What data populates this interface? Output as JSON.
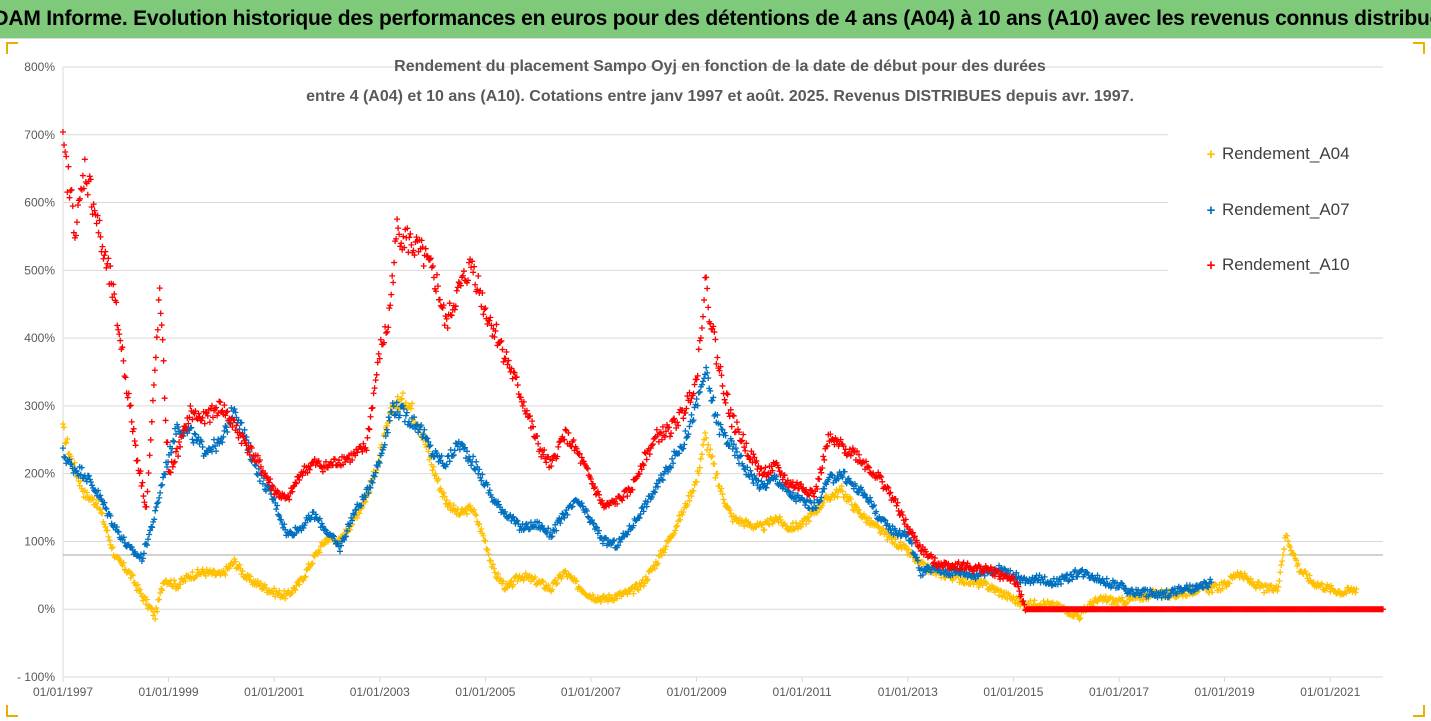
{
  "banner": {
    "title": "ADAM Informe. Evolution historique des performances en euros pour des détentions de 4 ans (A04) à 10 ans (A10) avec les revenus connus distribués"
  },
  "colors": {
    "banner_bg": "#7fc97a",
    "A04": "#ffc000",
    "A07": "#0070c0",
    "A10": "#ff0000",
    "gridline": "#d9d9d9",
    "reference_line": "#a6a6a6"
  },
  "chart_data": {
    "type": "scatter",
    "title_line1": "Rendement du placement Sampo Oyj en fonction de la date de début pour des durées",
    "title_line2": "entre 4 (A04) et 10 ans (A10). Cotations entre janv 1997 et août. 2025. Revenus DISTRIBUES depuis avr. 1997.",
    "xlabel": "",
    "ylabel": "",
    "xlim": [
      "1997-01-01",
      "2022-01-01"
    ],
    "ylim": [
      -100,
      800
    ],
    "y_unit": "%",
    "grid": "horizontal",
    "marker": "+",
    "legend_position": "right",
    "reference_line_y": 80,
    "x_ticks": [
      "01/01/1997",
      "01/01/1999",
      "01/01/2001",
      "01/01/2003",
      "01/01/2005",
      "01/01/2007",
      "01/01/2009",
      "01/01/2011",
      "01/01/2013",
      "01/01/2015",
      "01/01/2017",
      "01/01/2019",
      "01/01/2021"
    ],
    "y_ticks": [
      "800%",
      "700%",
      "600%",
      "500%",
      "400%",
      "300%",
      "200%",
      "100%",
      "0%",
      "- 100%"
    ],
    "series": [
      {
        "name": "Rendement_A04",
        "color": "#ffc000",
        "points": [
          [
            "1997-01-01",
            265
          ],
          [
            "1997-03-01",
            220
          ],
          [
            "1997-06-01",
            170
          ],
          [
            "1997-09-01",
            155
          ],
          [
            "1998-01-01",
            75
          ],
          [
            "1998-04-01",
            55
          ],
          [
            "1998-07-01",
            20
          ],
          [
            "1998-10-01",
            -10
          ],
          [
            "1998-12-01",
            45
          ],
          [
            "1999-03-01",
            35
          ],
          [
            "1999-06-01",
            50
          ],
          [
            "1999-09-01",
            55
          ],
          [
            "2000-01-01",
            50
          ],
          [
            "2000-04-01",
            70
          ],
          [
            "2000-07-01",
            45
          ],
          [
            "2000-10-01",
            35
          ],
          [
            "2001-01-01",
            25
          ],
          [
            "2001-04-01",
            20
          ],
          [
            "2001-07-01",
            40
          ],
          [
            "2001-10-01",
            75
          ],
          [
            "2002-01-01",
            105
          ],
          [
            "2002-04-01",
            100
          ],
          [
            "2002-07-01",
            130
          ],
          [
            "2002-10-01",
            165
          ],
          [
            "2003-01-01",
            225
          ],
          [
            "2003-04-01",
            300
          ],
          [
            "2003-07-01",
            310
          ],
          [
            "2003-10-01",
            275
          ],
          [
            "2004-01-01",
            210
          ],
          [
            "2004-04-01",
            160
          ],
          [
            "2004-07-01",
            140
          ],
          [
            "2004-10-01",
            150
          ],
          [
            "2005-01-01",
            100
          ],
          [
            "2005-03-01",
            55
          ],
          [
            "2005-06-01",
            30
          ],
          [
            "2005-09-01",
            50
          ],
          [
            "2006-01-01",
            40
          ],
          [
            "2006-04-01",
            30
          ],
          [
            "2006-07-01",
            55
          ],
          [
            "2006-10-01",
            35
          ],
          [
            "2007-01-01",
            20
          ],
          [
            "2007-04-01",
            15
          ],
          [
            "2007-07-01",
            20
          ],
          [
            "2007-10-01",
            25
          ],
          [
            "2008-01-01",
            40
          ],
          [
            "2008-04-01",
            70
          ],
          [
            "2008-07-01",
            105
          ],
          [
            "2008-10-01",
            145
          ],
          [
            "2009-01-01",
            190
          ],
          [
            "2009-03-01",
            255
          ],
          [
            "2009-06-01",
            185
          ],
          [
            "2009-09-01",
            135
          ],
          [
            "2010-01-01",
            125
          ],
          [
            "2010-04-01",
            120
          ],
          [
            "2010-07-01",
            135
          ],
          [
            "2010-10-01",
            120
          ],
          [
            "2011-01-01",
            125
          ],
          [
            "2011-04-01",
            145
          ],
          [
            "2011-07-01",
            165
          ],
          [
            "2011-10-01",
            175
          ],
          [
            "2012-01-01",
            150
          ],
          [
            "2012-04-01",
            130
          ],
          [
            "2012-07-01",
            115
          ],
          [
            "2012-10-01",
            100
          ],
          [
            "2013-01-01",
            85
          ],
          [
            "2013-04-01",
            65
          ],
          [
            "2013-07-01",
            55
          ],
          [
            "2013-10-01",
            50
          ],
          [
            "2014-01-01",
            45
          ],
          [
            "2014-04-01",
            40
          ],
          [
            "2014-07-01",
            35
          ],
          [
            "2014-10-01",
            25
          ],
          [
            "2015-01-01",
            15
          ],
          [
            "2015-04-01",
            5
          ],
          [
            "2015-07-01",
            10
          ],
          [
            "2015-10-01",
            5
          ],
          [
            "2016-01-01",
            0
          ],
          [
            "2016-04-01",
            -10
          ],
          [
            "2016-07-01",
            10
          ],
          [
            "2016-10-01",
            15
          ],
          [
            "2017-01-01",
            10
          ],
          [
            "2017-04-01",
            15
          ],
          [
            "2017-07-01",
            20
          ],
          [
            "2017-10-01",
            25
          ],
          [
            "2018-01-01",
            20
          ],
          [
            "2018-04-01",
            25
          ],
          [
            "2018-07-01",
            30
          ],
          [
            "2018-10-01",
            30
          ],
          [
            "2019-01-01",
            35
          ],
          [
            "2019-04-01",
            55
          ],
          [
            "2019-07-01",
            40
          ],
          [
            "2019-10-01",
            30
          ],
          [
            "2020-01-01",
            30
          ],
          [
            "2020-03-01",
            110
          ],
          [
            "2020-06-01",
            60
          ],
          [
            "2020-09-01",
            40
          ],
          [
            "2021-01-01",
            30
          ],
          [
            "2021-04-01",
            25
          ],
          [
            "2021-07-01",
            30
          ]
        ]
      },
      {
        "name": "Rendement_A07",
        "color": "#0070c0",
        "points": [
          [
            "1997-01-01",
            230
          ],
          [
            "1997-03-01",
            210
          ],
          [
            "1997-06-01",
            200
          ],
          [
            "1997-09-01",
            170
          ],
          [
            "1998-01-01",
            120
          ],
          [
            "1998-04-01",
            90
          ],
          [
            "1998-07-01",
            75
          ],
          [
            "1998-10-01",
            140
          ],
          [
            "1998-12-01",
            200
          ],
          [
            "1999-03-01",
            270
          ],
          [
            "1999-06-01",
            260
          ],
          [
            "1999-09-01",
            235
          ],
          [
            "2000-01-01",
            245
          ],
          [
            "2000-04-01",
            300
          ],
          [
            "2000-07-01",
            240
          ],
          [
            "2000-10-01",
            195
          ],
          [
            "2001-01-01",
            160
          ],
          [
            "2001-04-01",
            110
          ],
          [
            "2001-07-01",
            120
          ],
          [
            "2001-10-01",
            140
          ],
          [
            "2002-01-01",
            115
          ],
          [
            "2002-04-01",
            90
          ],
          [
            "2002-07-01",
            140
          ],
          [
            "2002-10-01",
            170
          ],
          [
            "2003-01-01",
            220
          ],
          [
            "2003-04-01",
            300
          ],
          [
            "2003-07-01",
            285
          ],
          [
            "2003-10-01",
            270
          ],
          [
            "2004-01-01",
            230
          ],
          [
            "2004-04-01",
            215
          ],
          [
            "2004-07-01",
            245
          ],
          [
            "2004-10-01",
            220
          ],
          [
            "2005-01-01",
            185
          ],
          [
            "2005-03-01",
            160
          ],
          [
            "2005-06-01",
            140
          ],
          [
            "2005-09-01",
            120
          ],
          [
            "2006-01-01",
            125
          ],
          [
            "2006-04-01",
            110
          ],
          [
            "2006-07-01",
            140
          ],
          [
            "2006-10-01",
            160
          ],
          [
            "2007-01-01",
            130
          ],
          [
            "2007-04-01",
            100
          ],
          [
            "2007-07-01",
            95
          ],
          [
            "2007-10-01",
            120
          ],
          [
            "2008-01-01",
            150
          ],
          [
            "2008-04-01",
            180
          ],
          [
            "2008-07-01",
            215
          ],
          [
            "2008-10-01",
            245
          ],
          [
            "2009-01-01",
            300
          ],
          [
            "2009-03-01",
            350
          ],
          [
            "2009-06-01",
            270
          ],
          [
            "2009-09-01",
            240
          ],
          [
            "2010-01-01",
            200
          ],
          [
            "2010-04-01",
            180
          ],
          [
            "2010-07-01",
            195
          ],
          [
            "2010-10-01",
            170
          ],
          [
            "2011-01-01",
            160
          ],
          [
            "2011-04-01",
            150
          ],
          [
            "2011-07-01",
            190
          ],
          [
            "2011-10-01",
            200
          ],
          [
            "2012-01-01",
            180
          ],
          [
            "2012-04-01",
            165
          ],
          [
            "2012-07-01",
            130
          ],
          [
            "2012-10-01",
            115
          ],
          [
            "2013-01-01",
            110
          ],
          [
            "2013-04-01",
            55
          ],
          [
            "2013-07-01",
            60
          ],
          [
            "2013-10-01",
            55
          ],
          [
            "2014-01-01",
            55
          ],
          [
            "2014-04-01",
            50
          ],
          [
            "2014-07-01",
            55
          ],
          [
            "2014-10-01",
            60
          ],
          [
            "2015-01-01",
            50
          ],
          [
            "2015-04-01",
            40
          ],
          [
            "2015-07-01",
            45
          ],
          [
            "2015-10-01",
            40
          ],
          [
            "2016-01-01",
            45
          ],
          [
            "2016-04-01",
            55
          ],
          [
            "2016-07-01",
            50
          ],
          [
            "2016-10-01",
            40
          ],
          [
            "2017-01-01",
            35
          ],
          [
            "2017-04-01",
            25
          ],
          [
            "2017-07-01",
            25
          ],
          [
            "2017-10-01",
            20
          ],
          [
            "2018-01-01",
            25
          ],
          [
            "2018-04-01",
            30
          ],
          [
            "2018-07-01",
            30
          ],
          [
            "2018-10-01",
            40
          ]
        ]
      },
      {
        "name": "Rendement_A10",
        "color": "#ff0000",
        "points": [
          [
            "1997-01-01",
            680
          ],
          [
            "1997-02-15",
            620
          ],
          [
            "1997-04-01",
            560
          ],
          [
            "1997-06-01",
            650
          ],
          [
            "1997-08-01",
            600
          ],
          [
            "1997-10-01",
            530
          ],
          [
            "1997-12-01",
            480
          ],
          [
            "1998-02-01",
            400
          ],
          [
            "1998-04-01",
            310
          ],
          [
            "1998-06-01",
            220
          ],
          [
            "1998-08-01",
            150
          ],
          [
            "1998-09-15",
            300
          ],
          [
            "1998-11-01",
            470
          ],
          [
            "1999-01-01",
            200
          ],
          [
            "1999-03-01",
            230
          ],
          [
            "1999-06-01",
            290
          ],
          [
            "1999-09-01",
            280
          ],
          [
            "2000-01-01",
            300
          ],
          [
            "2000-04-01",
            270
          ],
          [
            "2000-07-01",
            240
          ],
          [
            "2000-10-01",
            210
          ],
          [
            "2001-01-01",
            175
          ],
          [
            "2001-04-01",
            160
          ],
          [
            "2001-07-01",
            200
          ],
          [
            "2001-10-01",
            215
          ],
          [
            "2002-01-01",
            210
          ],
          [
            "2002-04-01",
            220
          ],
          [
            "2002-07-01",
            225
          ],
          [
            "2002-10-01",
            240
          ],
          [
            "2003-01-01",
            380
          ],
          [
            "2003-03-01",
            420
          ],
          [
            "2003-05-01",
            560
          ],
          [
            "2003-08-01",
            540
          ],
          [
            "2003-11-01",
            520
          ],
          [
            "2004-02-01",
            480
          ],
          [
            "2004-04-01",
            420
          ],
          [
            "2004-07-01",
            470
          ],
          [
            "2004-10-01",
            510
          ],
          [
            "2005-01-01",
            440
          ],
          [
            "2005-04-01",
            400
          ],
          [
            "2005-07-01",
            350
          ],
          [
            "2005-10-01",
            300
          ],
          [
            "2006-01-01",
            240
          ],
          [
            "2006-04-01",
            210
          ],
          [
            "2006-07-01",
            260
          ],
          [
            "2006-10-01",
            230
          ],
          [
            "2007-01-01",
            190
          ],
          [
            "2007-04-01",
            150
          ],
          [
            "2007-07-01",
            160
          ],
          [
            "2007-10-01",
            175
          ],
          [
            "2008-01-01",
            220
          ],
          [
            "2008-04-01",
            255
          ],
          [
            "2008-07-01",
            265
          ],
          [
            "2008-10-01",
            290
          ],
          [
            "2009-01-01",
            340
          ],
          [
            "2009-03-01",
            480
          ],
          [
            "2009-06-01",
            360
          ],
          [
            "2009-09-01",
            280
          ],
          [
            "2010-01-01",
            230
          ],
          [
            "2010-04-01",
            200
          ],
          [
            "2010-07-01",
            210
          ],
          [
            "2010-10-01",
            185
          ],
          [
            "2011-01-01",
            180
          ],
          [
            "2011-04-01",
            170
          ],
          [
            "2011-07-01",
            250
          ],
          [
            "2011-10-01",
            240
          ],
          [
            "2012-01-01",
            230
          ],
          [
            "2012-04-01",
            210
          ],
          [
            "2012-07-01",
            190
          ],
          [
            "2012-10-01",
            160
          ],
          [
            "2013-01-01",
            120
          ],
          [
            "2013-04-01",
            90
          ],
          [
            "2013-07-01",
            70
          ],
          [
            "2013-10-01",
            65
          ],
          [
            "2014-01-01",
            65
          ],
          [
            "2014-04-01",
            60
          ],
          [
            "2014-07-01",
            60
          ],
          [
            "2014-10-01",
            50
          ],
          [
            "2015-01-01",
            45
          ],
          [
            "2015-04-01",
            0
          ],
          [
            "2016-01-01",
            0
          ],
          [
            "2017-01-01",
            0
          ],
          [
            "2018-01-01",
            0
          ],
          [
            "2019-01-01",
            0
          ],
          [
            "2020-01-01",
            0
          ],
          [
            "2021-01-01",
            0
          ],
          [
            "2022-01-01",
            0
          ]
        ]
      }
    ]
  }
}
